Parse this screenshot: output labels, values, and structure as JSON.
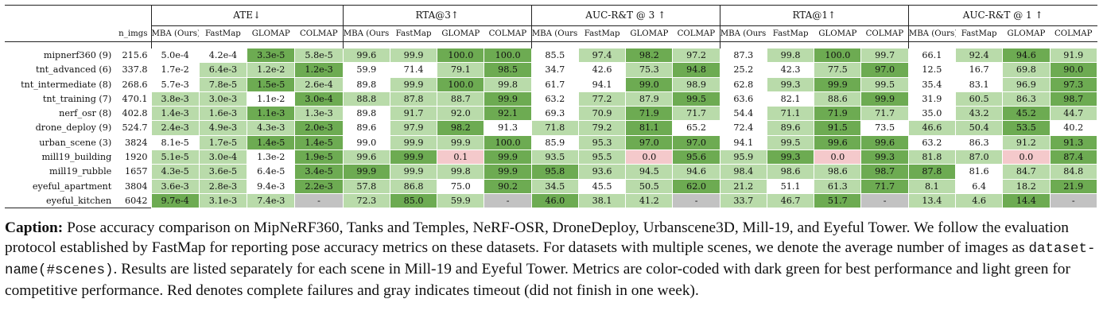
{
  "table": {
    "header_group_label": "",
    "nimgs_label": "n_imgs",
    "groups": [
      "ATE↓",
      "RTA@3↑",
      "AUC-R&T @ 3 ↑",
      "RTA@1↑",
      "AUC-R&T @ 1 ↑"
    ],
    "methods": [
      "MBA (Ours)",
      "FastMap",
      "GLOMAP",
      "COLMAP"
    ],
    "rows": [
      {
        "name": "mipnerf360 (9)",
        "nimgs": "215.6",
        "cells": [
          [
            "5.0e-4",
            "n"
          ],
          [
            "4.2e-4",
            "n"
          ],
          [
            "3.3e-5",
            "d"
          ],
          [
            "5.8e-5",
            "l"
          ],
          [
            "99.6",
            "l"
          ],
          [
            "99.9",
            "l"
          ],
          [
            "100.0",
            "d"
          ],
          [
            "100.0",
            "d"
          ],
          [
            "85.5",
            "n"
          ],
          [
            "97.4",
            "l"
          ],
          [
            "98.2",
            "d"
          ],
          [
            "97.2",
            "l"
          ],
          [
            "87.3",
            "n"
          ],
          [
            "99.8",
            "l"
          ],
          [
            "100.0",
            "d"
          ],
          [
            "99.7",
            "l"
          ],
          [
            "66.1",
            "n"
          ],
          [
            "92.4",
            "l"
          ],
          [
            "94.6",
            "d"
          ],
          [
            "91.9",
            "l"
          ]
        ]
      },
      {
        "name": "tnt_advanced (6)",
        "nimgs": "337.8",
        "cells": [
          [
            "1.7e-2",
            "n"
          ],
          [
            "6.4e-3",
            "l"
          ],
          [
            "1.2e-2",
            "l"
          ],
          [
            "1.2e-3",
            "d"
          ],
          [
            "59.9",
            "n"
          ],
          [
            "71.4",
            "n"
          ],
          [
            "79.1",
            "l"
          ],
          [
            "98.5",
            "d"
          ],
          [
            "34.7",
            "n"
          ],
          [
            "42.6",
            "n"
          ],
          [
            "75.3",
            "l"
          ],
          [
            "94.8",
            "d"
          ],
          [
            "25.2",
            "n"
          ],
          [
            "42.3",
            "n"
          ],
          [
            "77.5",
            "l"
          ],
          [
            "97.0",
            "d"
          ],
          [
            "12.5",
            "n"
          ],
          [
            "16.7",
            "n"
          ],
          [
            "69.8",
            "l"
          ],
          [
            "90.0",
            "d"
          ]
        ]
      },
      {
        "name": "tnt_intermediate (8)",
        "nimgs": "268.6",
        "cells": [
          [
            "5.7e-3",
            "n"
          ],
          [
            "7.8e-5",
            "l"
          ],
          [
            "1.5e-5",
            "d"
          ],
          [
            "2.6e-4",
            "l"
          ],
          [
            "89.8",
            "n"
          ],
          [
            "99.9",
            "l"
          ],
          [
            "100.0",
            "d"
          ],
          [
            "99.8",
            "l"
          ],
          [
            "61.7",
            "n"
          ],
          [
            "94.1",
            "n"
          ],
          [
            "99.0",
            "d"
          ],
          [
            "98.9",
            "l"
          ],
          [
            "62.8",
            "n"
          ],
          [
            "99.3",
            "l"
          ],
          [
            "99.9",
            "d"
          ],
          [
            "99.5",
            "l"
          ],
          [
            "35.4",
            "n"
          ],
          [
            "83.1",
            "n"
          ],
          [
            "96.9",
            "l"
          ],
          [
            "97.3",
            "d"
          ]
        ]
      },
      {
        "name": "tnt_training (7)",
        "nimgs": "470.1",
        "cells": [
          [
            "3.8e-3",
            "l"
          ],
          [
            "3.0e-3",
            "l"
          ],
          [
            "1.1e-2",
            "n"
          ],
          [
            "3.0e-4",
            "d"
          ],
          [
            "88.8",
            "l"
          ],
          [
            "87.8",
            "l"
          ],
          [
            "88.7",
            "l"
          ],
          [
            "99.9",
            "d"
          ],
          [
            "63.2",
            "n"
          ],
          [
            "77.2",
            "l"
          ],
          [
            "87.9",
            "l"
          ],
          [
            "99.5",
            "d"
          ],
          [
            "63.6",
            "n"
          ],
          [
            "82.1",
            "n"
          ],
          [
            "88.6",
            "l"
          ],
          [
            "99.9",
            "d"
          ],
          [
            "31.9",
            "n"
          ],
          [
            "60.5",
            "l"
          ],
          [
            "86.3",
            "l"
          ],
          [
            "98.7",
            "d"
          ]
        ]
      },
      {
        "name": "nerf_osr (8)",
        "nimgs": "402.8",
        "cells": [
          [
            "1.4e-3",
            "l"
          ],
          [
            "1.6e-3",
            "l"
          ],
          [
            "1.1e-3",
            "d"
          ],
          [
            "1.3e-3",
            "l"
          ],
          [
            "89.8",
            "n"
          ],
          [
            "91.7",
            "l"
          ],
          [
            "92.0",
            "l"
          ],
          [
            "92.1",
            "d"
          ],
          [
            "69.3",
            "n"
          ],
          [
            "70.9",
            "l"
          ],
          [
            "71.9",
            "d"
          ],
          [
            "71.7",
            "l"
          ],
          [
            "54.4",
            "n"
          ],
          [
            "71.1",
            "l"
          ],
          [
            "71.9",
            "d"
          ],
          [
            "71.7",
            "l"
          ],
          [
            "35.0",
            "n"
          ],
          [
            "43.2",
            "l"
          ],
          [
            "45.2",
            "d"
          ],
          [
            "44.7",
            "l"
          ]
        ]
      },
      {
        "name": "drone_deploy (9)",
        "nimgs": "524.7",
        "cells": [
          [
            "2.4e-3",
            "l"
          ],
          [
            "4.9e-3",
            "l"
          ],
          [
            "4.3e-3",
            "l"
          ],
          [
            "2.0e-3",
            "d"
          ],
          [
            "89.6",
            "n"
          ],
          [
            "97.9",
            "l"
          ],
          [
            "98.2",
            "d"
          ],
          [
            "91.3",
            "n"
          ],
          [
            "71.8",
            "l"
          ],
          [
            "79.2",
            "l"
          ],
          [
            "81.1",
            "d"
          ],
          [
            "65.2",
            "n"
          ],
          [
            "72.4",
            "n"
          ],
          [
            "89.6",
            "l"
          ],
          [
            "91.5",
            "d"
          ],
          [
            "73.5",
            "n"
          ],
          [
            "46.6",
            "l"
          ],
          [
            "50.4",
            "l"
          ],
          [
            "53.5",
            "d"
          ],
          [
            "40.2",
            "n"
          ]
        ]
      },
      {
        "name": "urban_scene (3)",
        "nimgs": "3824",
        "cells": [
          [
            "8.1e-5",
            "n"
          ],
          [
            "1.7e-5",
            "l"
          ],
          [
            "1.4e-5",
            "d"
          ],
          [
            "1.4e-5",
            "d"
          ],
          [
            "99.0",
            "n"
          ],
          [
            "99.9",
            "l"
          ],
          [
            "99.9",
            "l"
          ],
          [
            "100.0",
            "d"
          ],
          [
            "85.9",
            "n"
          ],
          [
            "95.3",
            "l"
          ],
          [
            "97.0",
            "d"
          ],
          [
            "97.0",
            "d"
          ],
          [
            "94.1",
            "n"
          ],
          [
            "99.5",
            "l"
          ],
          [
            "99.6",
            "d"
          ],
          [
            "99.6",
            "d"
          ],
          [
            "63.2",
            "n"
          ],
          [
            "86.3",
            "n"
          ],
          [
            "91.2",
            "l"
          ],
          [
            "91.3",
            "d"
          ]
        ]
      },
      {
        "name": "mill19_building",
        "nimgs": "1920",
        "cells": [
          [
            "5.1e-5",
            "l"
          ],
          [
            "3.0e-4",
            "l"
          ],
          [
            "1.3e-2",
            "n"
          ],
          [
            "1.9e-5",
            "d"
          ],
          [
            "99.6",
            "l"
          ],
          [
            "99.9",
            "d"
          ],
          [
            "0.1",
            "r"
          ],
          [
            "99.9",
            "d"
          ],
          [
            "93.5",
            "l"
          ],
          [
            "95.5",
            "l"
          ],
          [
            "0.0",
            "r"
          ],
          [
            "95.6",
            "d"
          ],
          [
            "95.9",
            "l"
          ],
          [
            "99.3",
            "d"
          ],
          [
            "0.0",
            "r"
          ],
          [
            "99.3",
            "d"
          ],
          [
            "81.8",
            "l"
          ],
          [
            "87.0",
            "l"
          ],
          [
            "0.0",
            "r"
          ],
          [
            "87.4",
            "d"
          ]
        ]
      },
      {
        "name": "mill19_rubble",
        "nimgs": "1657",
        "cells": [
          [
            "4.3e-5",
            "l"
          ],
          [
            "3.6e-5",
            "l"
          ],
          [
            "6.4e-5",
            "n"
          ],
          [
            "3.4e-5",
            "d"
          ],
          [
            "99.9",
            "d"
          ],
          [
            "99.9",
            "l"
          ],
          [
            "99.8",
            "l"
          ],
          [
            "99.9",
            "d"
          ],
          [
            "95.8",
            "d"
          ],
          [
            "93.6",
            "l"
          ],
          [
            "94.5",
            "l"
          ],
          [
            "94.6",
            "l"
          ],
          [
            "98.4",
            "l"
          ],
          [
            "98.6",
            "l"
          ],
          [
            "98.6",
            "l"
          ],
          [
            "98.7",
            "d"
          ],
          [
            "87.8",
            "d"
          ],
          [
            "81.6",
            "n"
          ],
          [
            "84.7",
            "l"
          ],
          [
            "84.8",
            "l"
          ]
        ]
      },
      {
        "name": "eyeful_apartment",
        "nimgs": "3804",
        "cells": [
          [
            "3.6e-3",
            "l"
          ],
          [
            "2.8e-3",
            "l"
          ],
          [
            "9.4e-3",
            "n"
          ],
          [
            "2.2e-3",
            "d"
          ],
          [
            "57.8",
            "l"
          ],
          [
            "86.8",
            "l"
          ],
          [
            "75.0",
            "n"
          ],
          [
            "90.2",
            "d"
          ],
          [
            "34.5",
            "l"
          ],
          [
            "45.5",
            "n"
          ],
          [
            "50.5",
            "l"
          ],
          [
            "62.0",
            "d"
          ],
          [
            "21.2",
            "l"
          ],
          [
            "51.1",
            "n"
          ],
          [
            "61.3",
            "l"
          ],
          [
            "71.7",
            "d"
          ],
          [
            "8.1",
            "l"
          ],
          [
            "6.4",
            "n"
          ],
          [
            "18.2",
            "l"
          ],
          [
            "21.9",
            "d"
          ]
        ]
      },
      {
        "name": "eyeful_kitchen",
        "nimgs": "6042",
        "cells": [
          [
            "9.7e-4",
            "d"
          ],
          [
            "3.1e-3",
            "l"
          ],
          [
            "7.4e-3",
            "l"
          ],
          [
            "-",
            "g"
          ],
          [
            "72.3",
            "l"
          ],
          [
            "85.0",
            "d"
          ],
          [
            "59.9",
            "l"
          ],
          [
            "-",
            "g"
          ],
          [
            "46.0",
            "d"
          ],
          [
            "38.1",
            "l"
          ],
          [
            "41.2",
            "l"
          ],
          [
            "-",
            "g"
          ],
          [
            "33.7",
            "l"
          ],
          [
            "46.7",
            "l"
          ],
          [
            "51.7",
            "d"
          ],
          [
            "-",
            "g"
          ],
          [
            "13.4",
            "l"
          ],
          [
            "4.6",
            "l"
          ],
          [
            "14.4",
            "d"
          ],
          [
            "-",
            "g"
          ]
        ]
      }
    ]
  },
  "caption": {
    "label": "Caption:",
    "text_1": " Pose accuracy comparison on MipNeRF360, Tanks and Temples, NeRF-OSR, DroneDeploy, Urbanscene3D, Mill-19, and Eyeful Tower. We follow the evaluation protocol established by FastMap for reporting pose accuracy metrics on these datasets. For datasets with multiple scenes, we denote the average number of images as ",
    "code": "dataset-name(#scenes)",
    "text_2": ". Results are listed separately for each scene in Mill-19 and Eyeful Tower. Metrics are color-coded with dark green for best performance and light green for competitive performance. Red denotes complete failures and gray indicates timeout (did not finish in one week)."
  },
  "colors": {
    "dark_green": "#6dab52",
    "light_green": "#b9dbaa",
    "red": "#f4c9cb",
    "gray": "#c2c2c2"
  }
}
